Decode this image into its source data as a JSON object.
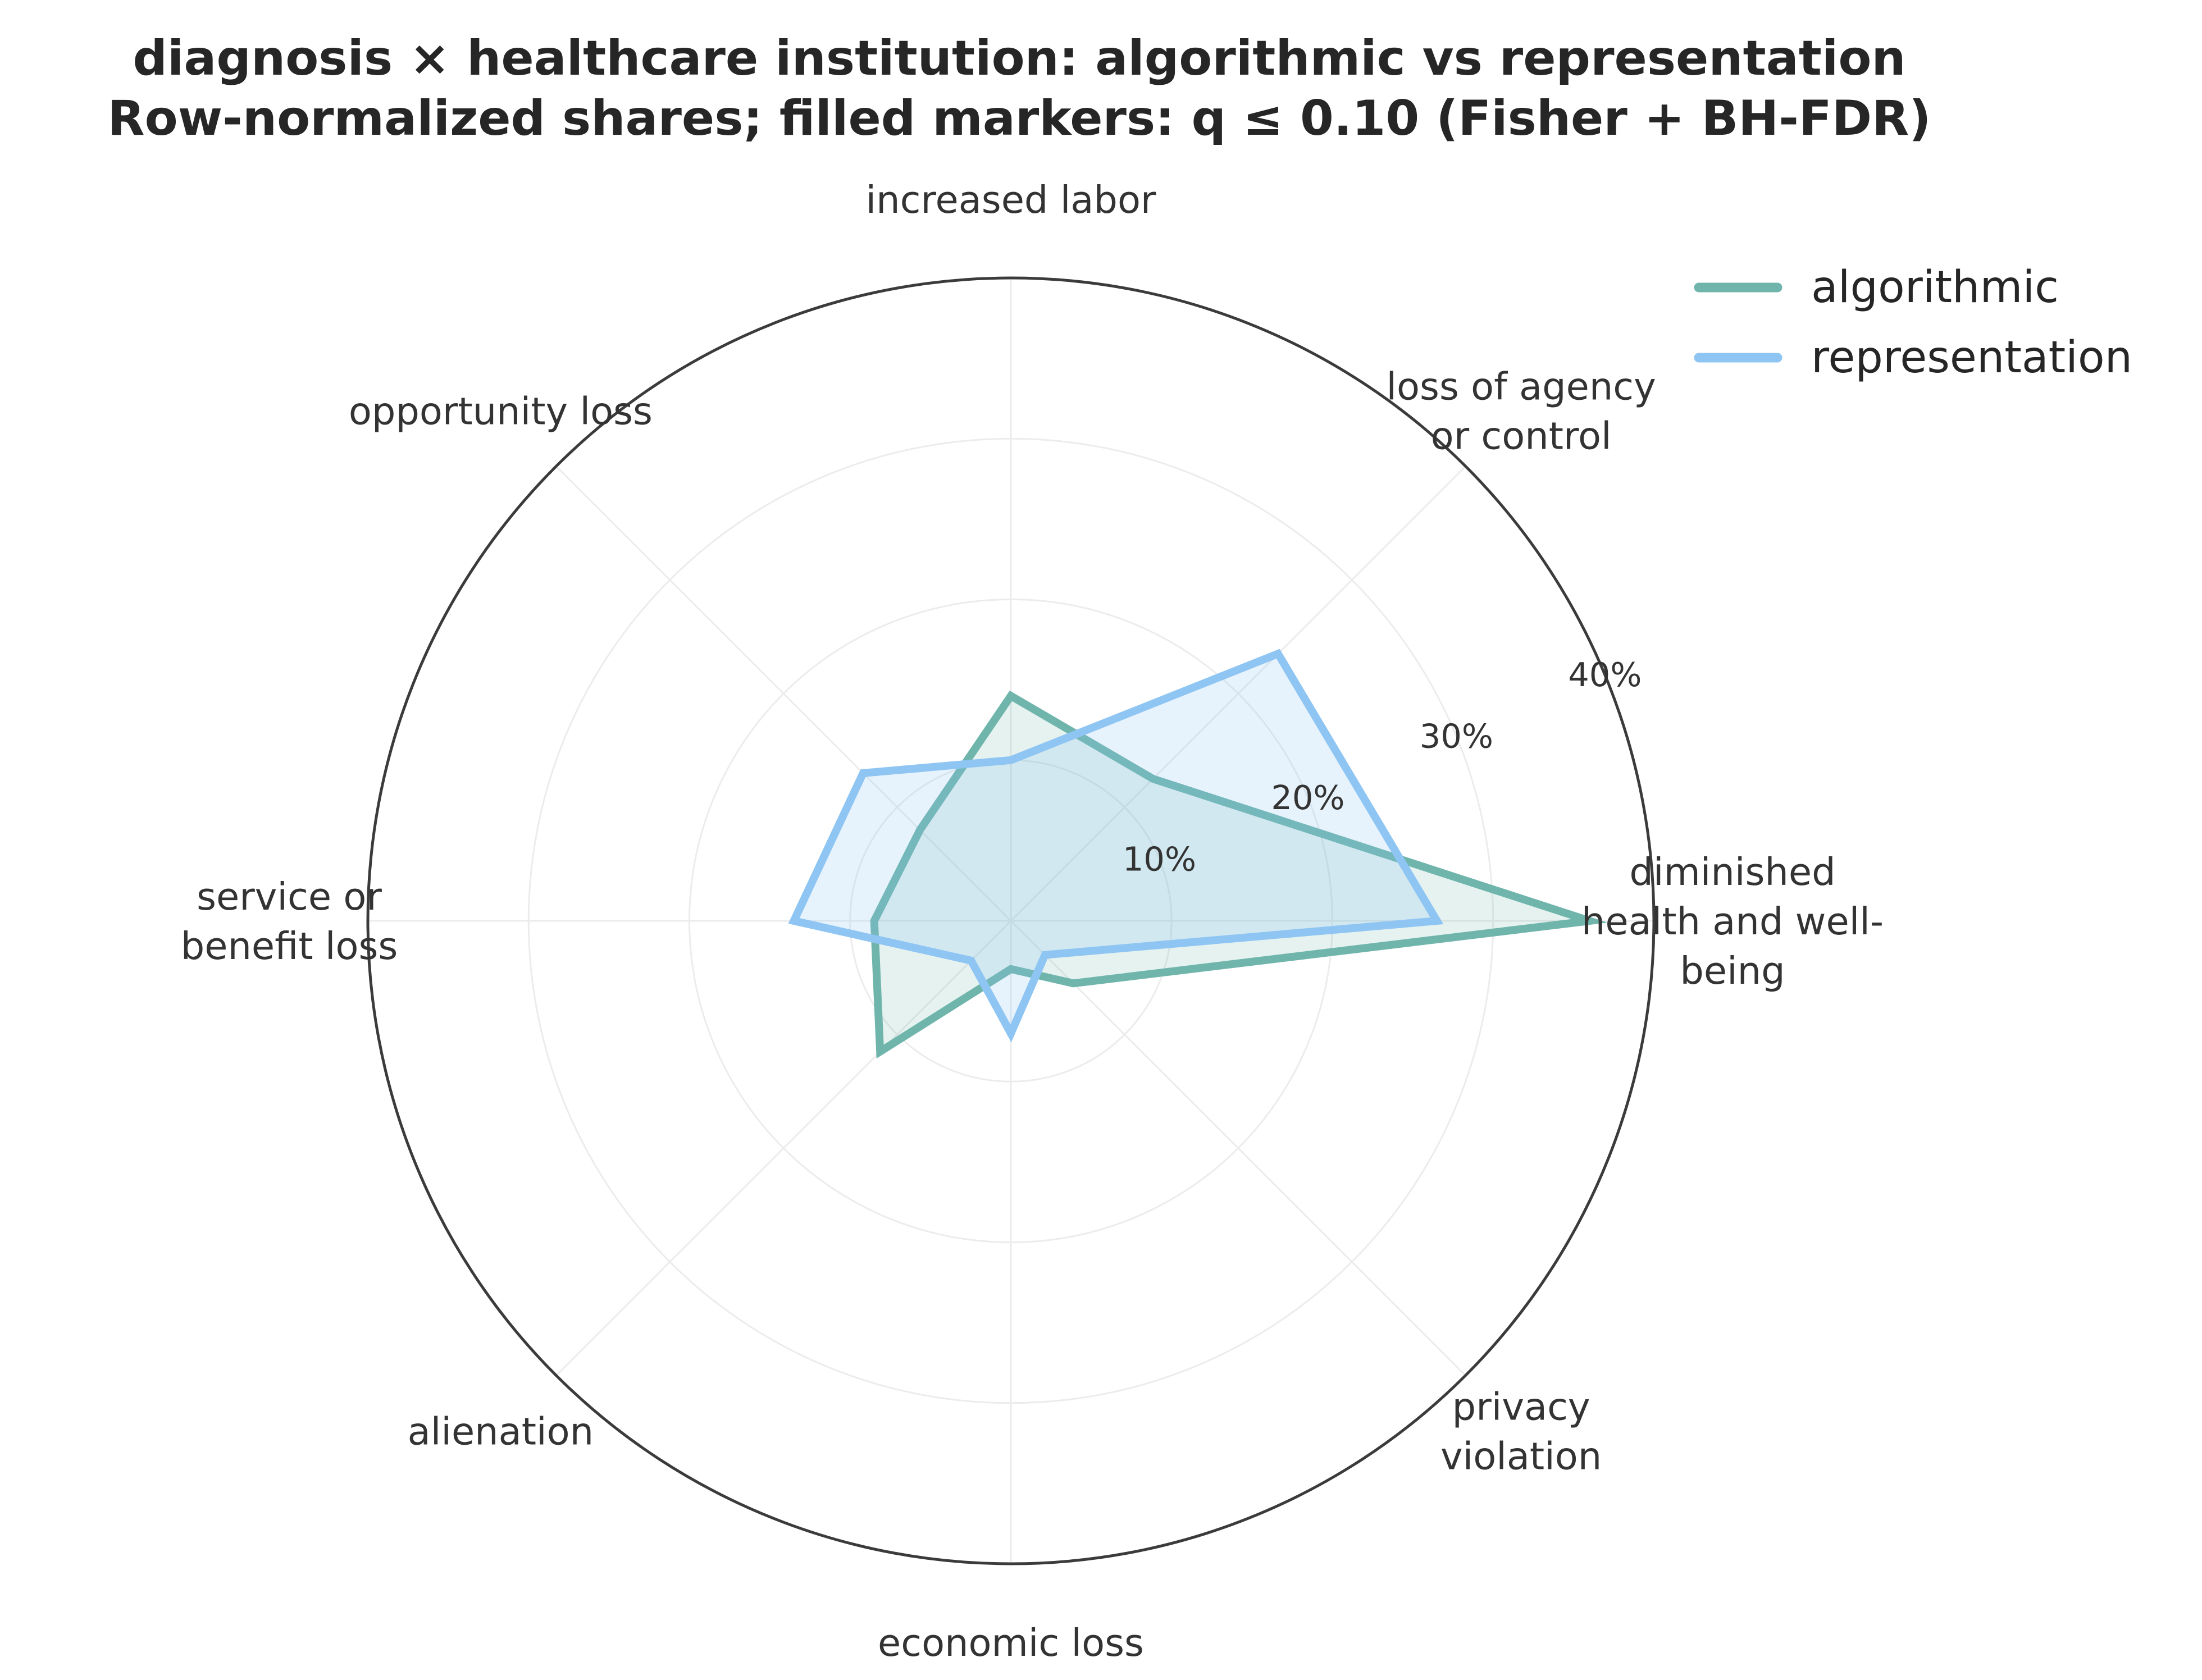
{
  "chart_data": {
    "type": "radar",
    "title": "diagnosis × healthcare institution: algorithmic vs representation",
    "subtitle": "Row-normalized shares; filled markers: q ≤ 0.10 (Fisher + BH-FDR)",
    "categories": [
      "diminished health and well-being",
      "loss of agency or control",
      "increased labor",
      "opportunity loss",
      "service or benefit loss",
      "alienation",
      "economic loss",
      "privacy violation"
    ],
    "category_label_lines": [
      [
        "diminished",
        "health and well-",
        "being"
      ],
      [
        "loss of agency",
        "or control"
      ],
      [
        "increased labor"
      ],
      [
        "opportunity loss"
      ],
      [
        "service or",
        "benefit loss"
      ],
      [
        "alienation"
      ],
      [
        "economic loss"
      ],
      [
        "privacy",
        "violation"
      ]
    ],
    "rlim": [
      0,
      40
    ],
    "rticks": [
      10,
      20,
      30,
      40
    ],
    "rtick_labels": [
      "10%",
      "20%",
      "30%",
      "40%"
    ],
    "series": [
      {
        "name": "algorithmic",
        "color": "#6fb5ac",
        "fill_opacity": 0.18,
        "values": [
          36.0,
          12.5,
          14.0,
          8.0,
          8.5,
          11.5,
          3.0,
          5.5
        ]
      },
      {
        "name": "representation",
        "color": "#8ec5f3",
        "fill_opacity": 0.22,
        "values": [
          26.5,
          23.5,
          10.0,
          13.0,
          13.5,
          3.5,
          7.0,
          3.0
        ]
      }
    ],
    "grid": true,
    "legend_position": "top-right"
  }
}
